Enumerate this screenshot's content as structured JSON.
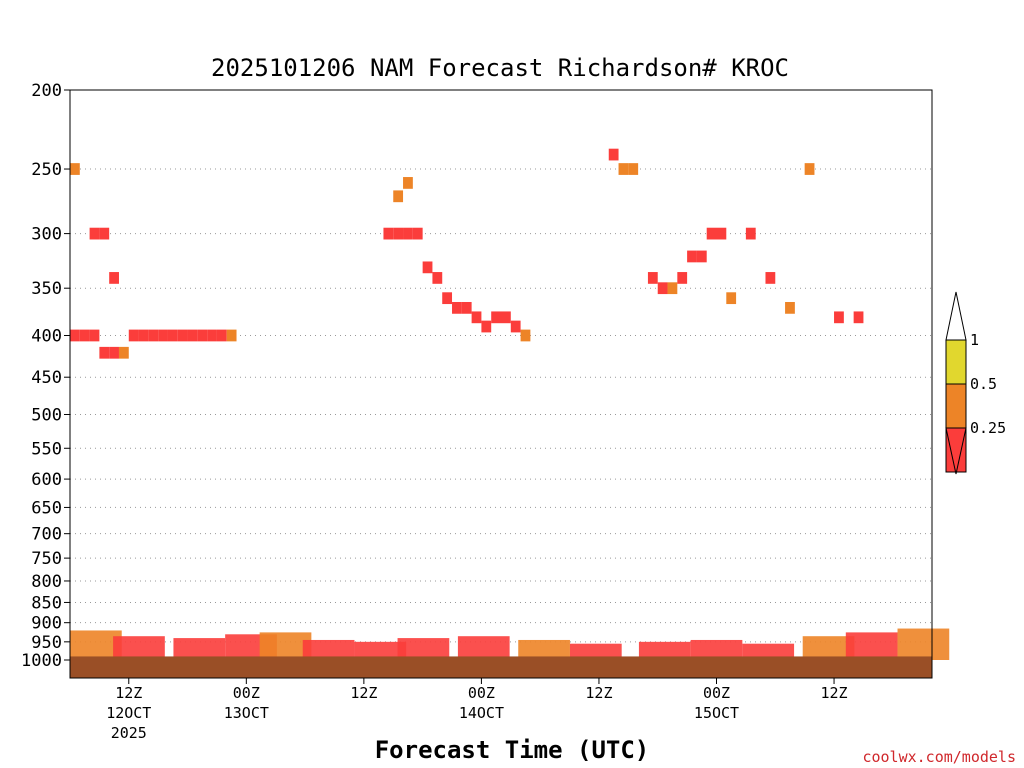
{
  "title": "2025101206 NAM Forecast Richardson# KROC",
  "credit": "coolwx.com/models",
  "colors": {
    "ri_0_25": "#f2a24a",
    "ri_0_25_red": "#fb3d3b",
    "ri_0_5": "#ed8427",
    "ri_1": "#e1d72e",
    "ground": "#9a4f26",
    "grid": "#999999"
  },
  "chart_data": {
    "type": "heatmap",
    "title": "2025101206 NAM Forecast Richardson# KROC",
    "xlabel": "Forecast Time (UTC)",
    "ylabel": "",
    "y_scale": "log (pressure, inverted)",
    "ylim": [
      1000,
      200
    ],
    "y_ticks": [
      200,
      250,
      300,
      350,
      400,
      450,
      500,
      550,
      600,
      650,
      700,
      750,
      800,
      850,
      900,
      950,
      1000
    ],
    "x_start": "2025-10-12 06Z",
    "x_end": "2025-10-15 22Z",
    "x_ticks": [
      {
        "time": "2025-10-12 12Z",
        "label": "12Z",
        "sub": "12OCT",
        "sub2": "2025"
      },
      {
        "time": "2025-10-13 00Z",
        "label": "00Z",
        "sub": "13OCT",
        "sub2": ""
      },
      {
        "time": "2025-10-13 12Z",
        "label": "12Z",
        "sub": "",
        "sub2": ""
      },
      {
        "time": "2025-10-14 00Z",
        "label": "00Z",
        "sub": "14OCT",
        "sub2": ""
      },
      {
        "time": "2025-10-14 12Z",
        "label": "12Z",
        "sub": "",
        "sub2": ""
      },
      {
        "time": "2025-10-15 00Z",
        "label": "00Z",
        "sub": "15OCT",
        "sub2": ""
      },
      {
        "time": "2025-10-15 12Z",
        "label": "12Z",
        "sub": "",
        "sub2": ""
      }
    ],
    "grid": "dotted horizontal at pressure ticks",
    "legend": {
      "placement": "right",
      "bins": [
        {
          "label": "1",
          "range": "0.5–1",
          "color": "#e1d72e"
        },
        {
          "label": "0.5",
          "range": "0.25–0.5",
          "color": "#ed8427"
        },
        {
          "label": "0.25",
          "range": "< 0.25",
          "color": "#fb3d3b"
        }
      ]
    },
    "cells_note": "Richardson number category per time/level, c: 1 = 0.5–1 (yellow), 2 = 0.25–0.5 (orange), 3 = <0.25 (red); values estimated from picture",
    "cells": [
      {
        "t": "2025-10-12 06Z",
        "p": 400,
        "c": 3
      },
      {
        "t": "2025-10-12 07Z",
        "p": 400,
        "c": 3
      },
      {
        "t": "2025-10-12 08Z",
        "p": 400,
        "c": 3
      },
      {
        "t": "2025-10-12 09Z",
        "p": 420,
        "c": 3
      },
      {
        "t": "2025-10-12 10Z",
        "p": 420,
        "c": 3
      },
      {
        "t": "2025-10-12 11Z",
        "p": 420,
        "c": 2
      },
      {
        "t": "2025-10-12 12Z",
        "p": 400,
        "c": 3
      },
      {
        "t": "2025-10-12 13Z",
        "p": 400,
        "c": 3
      },
      {
        "t": "2025-10-12 14Z",
        "p": 400,
        "c": 3
      },
      {
        "t": "2025-10-12 15Z",
        "p": 400,
        "c": 3
      },
      {
        "t": "2025-10-12 16Z",
        "p": 400,
        "c": 3
      },
      {
        "t": "2025-10-12 17Z",
        "p": 400,
        "c": 3
      },
      {
        "t": "2025-10-12 18Z",
        "p": 400,
        "c": 3
      },
      {
        "t": "2025-10-12 19Z",
        "p": 400,
        "c": 3
      },
      {
        "t": "2025-10-12 20Z",
        "p": 400,
        "c": 3
      },
      {
        "t": "2025-10-12 21Z",
        "p": 400,
        "c": 3
      },
      {
        "t": "2025-10-12 22Z",
        "p": 400,
        "c": 2
      },
      {
        "t": "2025-10-12 08Z",
        "p": 300,
        "c": 3
      },
      {
        "t": "2025-10-12 09Z",
        "p": 300,
        "c": 3
      },
      {
        "t": "2025-10-12 10Z",
        "p": 340,
        "c": 3
      },
      {
        "t": "2025-10-12 06Z",
        "p": 250,
        "c": 2
      },
      {
        "t": "2025-10-13 14Z",
        "p": 300,
        "c": 3
      },
      {
        "t": "2025-10-13 15Z",
        "p": 300,
        "c": 3
      },
      {
        "t": "2025-10-13 16Z",
        "p": 300,
        "c": 3
      },
      {
        "t": "2025-10-13 17Z",
        "p": 300,
        "c": 3
      },
      {
        "t": "2025-10-13 15Z",
        "p": 270,
        "c": 2
      },
      {
        "t": "2025-10-13 16Z",
        "p": 260,
        "c": 2
      },
      {
        "t": "2025-10-13 18Z",
        "p": 330,
        "c": 3
      },
      {
        "t": "2025-10-13 19Z",
        "p": 340,
        "c": 3
      },
      {
        "t": "2025-10-13 20Z",
        "p": 360,
        "c": 3
      },
      {
        "t": "2025-10-13 21Z",
        "p": 370,
        "c": 3
      },
      {
        "t": "2025-10-13 22Z",
        "p": 370,
        "c": 3
      },
      {
        "t": "2025-10-13 23Z",
        "p": 380,
        "c": 3
      },
      {
        "t": "2025-10-14 00Z",
        "p": 390,
        "c": 3
      },
      {
        "t": "2025-10-14 01Z",
        "p": 380,
        "c": 3
      },
      {
        "t": "2025-10-14 02Z",
        "p": 380,
        "c": 3
      },
      {
        "t": "2025-10-14 03Z",
        "p": 390,
        "c": 3
      },
      {
        "t": "2025-10-14 04Z",
        "p": 400,
        "c": 2
      },
      {
        "t": "2025-10-14 13Z",
        "p": 240,
        "c": 3
      },
      {
        "t": "2025-10-14 14Z",
        "p": 250,
        "c": 2
      },
      {
        "t": "2025-10-14 15Z",
        "p": 250,
        "c": 2
      },
      {
        "t": "2025-10-14 17Z",
        "p": 340,
        "c": 3
      },
      {
        "t": "2025-10-14 18Z",
        "p": 350,
        "c": 3
      },
      {
        "t": "2025-10-14 19Z",
        "p": 350,
        "c": 2
      },
      {
        "t": "2025-10-14 20Z",
        "p": 340,
        "c": 3
      },
      {
        "t": "2025-10-14 21Z",
        "p": 320,
        "c": 3
      },
      {
        "t": "2025-10-14 22Z",
        "p": 320,
        "c": 3
      },
      {
        "t": "2025-10-14 23Z",
        "p": 300,
        "c": 3
      },
      {
        "t": "2025-10-15 00Z",
        "p": 300,
        "c": 3
      },
      {
        "t": "2025-10-15 01Z",
        "p": 360,
        "c": 2
      },
      {
        "t": "2025-10-15 03Z",
        "p": 300,
        "c": 3
      },
      {
        "t": "2025-10-15 05Z",
        "p": 340,
        "c": 3
      },
      {
        "t": "2025-10-15 07Z",
        "p": 370,
        "c": 2
      },
      {
        "t": "2025-10-15 09Z",
        "p": 250,
        "c": 2
      },
      {
        "t": "2025-10-15 12Z",
        "p": 380,
        "c": 3
      },
      {
        "t": "2025-10-15 14Z",
        "p": 380,
        "c": 3
      }
    ],
    "ground_level_hpa": 990
  }
}
